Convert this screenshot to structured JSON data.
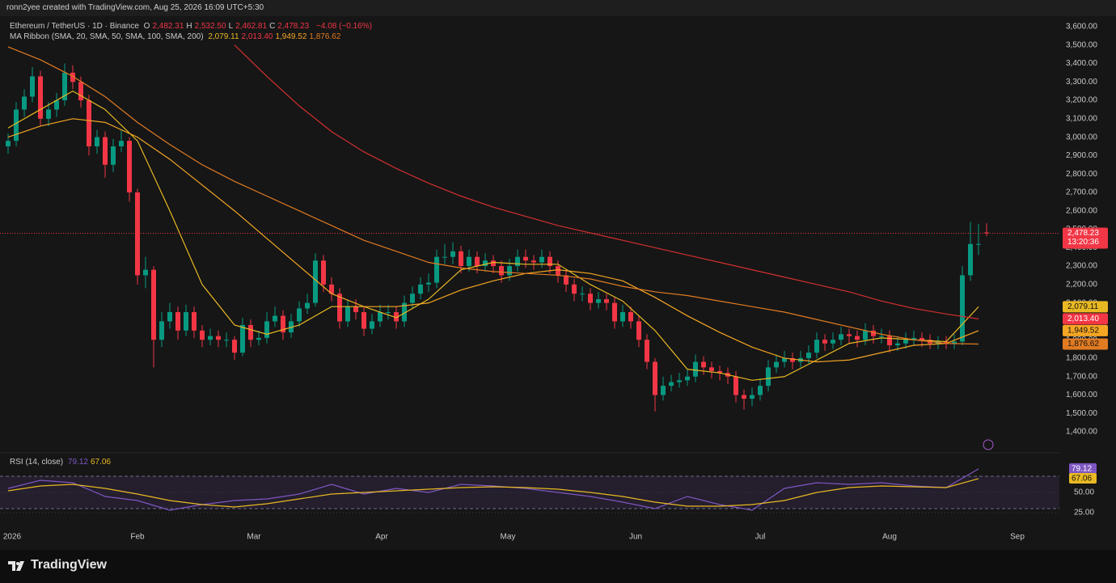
{
  "header": {
    "credit": "ronn2yee created with TradingView.com, Aug 25, 2026 16:09 UTC+5:30",
    "symbol": "Ethereum / TetherUS · 1D · Binance",
    "ohlc": [
      {
        "label": "O",
        "value": "2,482.31"
      },
      {
        "label": "H",
        "value": "2,532.50"
      },
      {
        "label": "L",
        "value": "2,462.81"
      },
      {
        "label": "C",
        "value": "2,478.23"
      }
    ],
    "change": "−4.08 (−0.16%)",
    "indicator": "MA Ribbon (SMA, 20, SMA, 50, SMA, 100, SMA, 200)",
    "rsi_name": "RSI (14, close)",
    "countdown": "13:20:36"
  },
  "footer": {
    "logo": "TradingView"
  },
  "chart_data": [
    {
      "type": "candlestick",
      "up_color": "#089981",
      "down_color": "#f23645",
      "grid": false,
      "ylim": [
        1295,
        3648
      ],
      "yticks": [
        {
          "value": 1400,
          "label": "1,400.00"
        },
        {
          "value": 1500,
          "label": "1,500.00"
        },
        {
          "value": 1600,
          "label": "1,600.00"
        },
        {
          "value": 1700,
          "label": "1,700.00"
        },
        {
          "value": 1800,
          "label": "1,800.00"
        },
        {
          "value": 1900,
          "label": "1,900.00"
        },
        {
          "value": 2000,
          "label": "2,000.00"
        },
        {
          "value": 2100,
          "label": "2,100.00"
        },
        {
          "value": 2200,
          "label": "2,200.00"
        },
        {
          "value": 2300,
          "label": "2,300.00"
        },
        {
          "value": 2400,
          "label": "2,400.00"
        },
        {
          "value": 2500,
          "label": "2,500.00"
        },
        {
          "value": 2600,
          "label": "2,600.00"
        },
        {
          "value": 2700,
          "label": "2,700.00"
        },
        {
          "value": 2800,
          "label": "2,800.00"
        },
        {
          "value": 2900,
          "label": "2,900.00"
        },
        {
          "value": 3000,
          "label": "3,000.00"
        },
        {
          "value": 3100,
          "label": "3,100.00"
        },
        {
          "value": 3200,
          "label": "3,200.00"
        },
        {
          "value": 3300,
          "label": "3,300.00"
        },
        {
          "value": 3400,
          "label": "3,400.00"
        },
        {
          "value": 3500,
          "label": "3,500.00"
        },
        {
          "value": 3600,
          "label": "3,600.00"
        }
      ],
      "xticks": [
        {
          "value": 0.5,
          "label": "2026"
        },
        {
          "value": 16,
          "label": "Feb"
        },
        {
          "value": 30.4,
          "label": "Mar"
        },
        {
          "value": 46.2,
          "label": "Apr"
        },
        {
          "value": 61.8,
          "label": "May"
        },
        {
          "value": 77.6,
          "label": "Jun"
        },
        {
          "value": 93,
          "label": "Jul"
        },
        {
          "value": 109,
          "label": "Aug"
        },
        {
          "value": 124.8,
          "label": "Sep"
        }
      ],
      "open": [
        2950,
        2980,
        3150,
        3220,
        3330,
        3100,
        3150,
        3200,
        3350,
        3300,
        3200,
        2950,
        3000,
        2850,
        2950,
        2980,
        2700,
        2250,
        2280,
        1900,
        2000,
        2050,
        1950,
        2050,
        1950,
        1900,
        1920,
        1900,
        1900,
        1830,
        1980,
        1900,
        1910,
        2000,
        2030,
        1940,
        2000,
        2070,
        2100,
        2330,
        2200,
        2150,
        2000,
        2080,
        2050,
        1960,
        2000,
        2050,
        2050,
        2000,
        2100,
        2150,
        2200,
        2210,
        2350,
        2350,
        2380,
        2300,
        2350,
        2300,
        2330,
        2300,
        2250,
        2300,
        2350,
        2330,
        2320,
        2350,
        2300,
        2250,
        2200,
        2150,
        2150,
        2100,
        2120,
        2100,
        2000,
        2050,
        2000,
        1900,
        1780,
        1600,
        1650,
        1670,
        1680,
        1700,
        1780,
        1750,
        1730,
        1720,
        1700,
        1600,
        1580,
        1600,
        1650,
        1750,
        1780,
        1800,
        1780,
        1800,
        1830,
        1900,
        1880,
        1900,
        1930,
        1920,
        1900,
        1950,
        1920,
        1920,
        1870,
        1880,
        1900,
        1910,
        1900,
        1880,
        1890,
        1880,
        1890,
        2250,
        2420,
        2482.31
      ],
      "high": [
        3020,
        3190,
        3260,
        3380,
        3360,
        3190,
        3240,
        3400,
        3390,
        3330,
        3230,
        3040,
        3030,
        2990,
        3040,
        3000,
        2720,
        2350,
        2300,
        2050,
        2100,
        2080,
        2090,
        2080,
        1980,
        1960,
        1950,
        1940,
        1920,
        2020,
        2010,
        1950,
        2050,
        2080,
        2060,
        2040,
        2110,
        2150,
        2370,
        2360,
        2240,
        2180,
        2120,
        2120,
        2080,
        2040,
        2090,
        2090,
        2080,
        2140,
        2190,
        2240,
        2260,
        2390,
        2420,
        2430,
        2410,
        2390,
        2380,
        2370,
        2360,
        2330,
        2340,
        2390,
        2390,
        2360,
        2390,
        2380,
        2330,
        2280,
        2230,
        2190,
        2180,
        2160,
        2150,
        2130,
        2090,
        2080,
        2030,
        1930,
        1800,
        1700,
        1710,
        1720,
        1740,
        1820,
        1810,
        1780,
        1760,
        1750,
        1730,
        1630,
        1640,
        1690,
        1790,
        1820,
        1840,
        1830,
        1840,
        1870,
        1940,
        1930,
        1940,
        1970,
        1960,
        1950,
        1990,
        1980,
        1960,
        1950,
        1920,
        1940,
        1950,
        1940,
        1930,
        1920,
        1920,
        1930,
        2300,
        2540,
        2530,
        2532.5
      ],
      "low": [
        2910,
        2950,
        3110,
        3190,
        3060,
        3060,
        3110,
        3170,
        3260,
        3160,
        2900,
        2910,
        2780,
        2810,
        2920,
        2650,
        2200,
        2180,
        1750,
        1860,
        1960,
        1900,
        1920,
        1910,
        1860,
        1870,
        1860,
        1860,
        1790,
        1810,
        1860,
        1870,
        1880,
        1970,
        1900,
        1910,
        1970,
        2040,
        2080,
        2160,
        2110,
        1960,
        1970,
        2010,
        1920,
        1930,
        1970,
        2010,
        1960,
        1970,
        2070,
        2120,
        2160,
        2180,
        2310,
        2310,
        2260,
        2270,
        2260,
        2270,
        2260,
        2210,
        2220,
        2270,
        2290,
        2280,
        2290,
        2260,
        2210,
        2160,
        2110,
        2110,
        2060,
        2070,
        2060,
        1960,
        1970,
        1960,
        1860,
        1740,
        1510,
        1570,
        1620,
        1640,
        1650,
        1670,
        1710,
        1690,
        1680,
        1660,
        1560,
        1520,
        1540,
        1570,
        1620,
        1720,
        1750,
        1740,
        1750,
        1770,
        1800,
        1840,
        1850,
        1870,
        1880,
        1860,
        1870,
        1880,
        1880,
        1830,
        1840,
        1850,
        1870,
        1860,
        1850,
        1850,
        1850,
        1850,
        1870,
        2220,
        2360,
        2462.81
      ],
      "close": [
        2980,
        3150,
        3220,
        3330,
        3100,
        3150,
        3200,
        3350,
        3300,
        3200,
        2950,
        3000,
        2850,
        2950,
        2980,
        2700,
        2250,
        2280,
        1900,
        2000,
        2050,
        1950,
        2050,
        1950,
        1900,
        1920,
        1900,
        1900,
        1830,
        1980,
        1900,
        1910,
        2000,
        2030,
        1940,
        2000,
        2070,
        2100,
        2330,
        2200,
        2150,
        2000,
        2080,
        2050,
        1960,
        2000,
        2050,
        2050,
        2000,
        2100,
        2150,
        2200,
        2210,
        2350,
        2350,
        2380,
        2300,
        2350,
        2300,
        2330,
        2300,
        2250,
        2300,
        2350,
        2330,
        2320,
        2350,
        2300,
        2250,
        2200,
        2150,
        2150,
        2100,
        2120,
        2100,
        2000,
        2050,
        2000,
        1900,
        1780,
        1600,
        1650,
        1670,
        1680,
        1700,
        1780,
        1750,
        1730,
        1720,
        1700,
        1600,
        1580,
        1600,
        1650,
        1750,
        1780,
        1800,
        1780,
        1800,
        1830,
        1900,
        1880,
        1900,
        1930,
        1920,
        1900,
        1950,
        1920,
        1920,
        1870,
        1880,
        1900,
        1910,
        1900,
        1880,
        1890,
        1880,
        1890,
        2250,
        2420,
        2420,
        2478.23
      ],
      "ma_series": [
        {
          "color": "#e8b923",
          "values": [
            3050,
            3150,
            3250,
            3150,
            2980,
            2600,
            2200,
            1980,
            1930,
            1980,
            2080,
            2080,
            2020,
            2120,
            2280,
            2320,
            2310,
            2310,
            2200,
            2110,
            1950,
            1740,
            1720,
            1680,
            1700,
            1790,
            1880,
            1910,
            1900,
            1890,
            2079.11
          ]
        },
        {
          "color": "#f5a623",
          "values": [
            3000,
            3060,
            3100,
            3080,
            3000,
            2880,
            2740,
            2600,
            2450,
            2300,
            2150,
            2080,
            2080,
            2100,
            2170,
            2220,
            2260,
            2280,
            2260,
            2220,
            2130,
            2030,
            1940,
            1860,
            1800,
            1780,
            1790,
            1830,
            1870,
            1880,
            1949.52
          ]
        },
        {
          "color": "#e07b22",
          "values": [
            3490,
            3420,
            3330,
            3220,
            3080,
            2960,
            2850,
            2760,
            2680,
            2600,
            2520,
            2440,
            2380,
            2320,
            2290,
            2270,
            2260,
            2250,
            2230,
            2190,
            2160,
            2140,
            2110,
            2080,
            2050,
            2010,
            1970,
            1930,
            1900,
            1880,
            1876.62
          ]
        },
        {
          "color": "#d32f2f",
          "values": [
            null,
            null,
            null,
            null,
            null,
            null,
            null,
            3500,
            3330,
            3170,
            3030,
            2920,
            2830,
            2750,
            2680,
            2620,
            2570,
            2520,
            2480,
            2440,
            2400,
            2360,
            2320,
            2280,
            2240,
            2200,
            2160,
            2110,
            2070,
            2040,
            2013.4
          ]
        }
      ],
      "price_tags": [
        {
          "value": 2478.23,
          "label": "2,478.23",
          "color": "#f23645"
        },
        {
          "value": 2079.11,
          "label": "2,079.11",
          "color": "#e8b923"
        },
        {
          "value": 2013.4,
          "label": "2,013.40",
          "color": "#f23645"
        },
        {
          "value": 1949.52,
          "label": "1,949.52",
          "color": "#f5a623"
        },
        {
          "value": 1876.62,
          "label": "1,876.62",
          "color": "#e07b22"
        }
      ]
    },
    {
      "type": "line",
      "ylim": [
        7,
        97
      ],
      "yticks": [
        {
          "value": 50,
          "label": "50.00"
        },
        {
          "value": 25,
          "label": "25.00"
        }
      ],
      "bands": [
        30,
        70
      ],
      "series": [
        {
          "color": "#7e57c2",
          "values": [
            55,
            65,
            62,
            45,
            40,
            28,
            35,
            40,
            42,
            48,
            60,
            48,
            55,
            50,
            60,
            58,
            55,
            50,
            45,
            38,
            30,
            45,
            35,
            28,
            55,
            62,
            60,
            62,
            58,
            56,
            79.12
          ]
        },
        {
          "color": "#e8b923",
          "values": [
            52,
            58,
            60,
            55,
            48,
            40,
            35,
            32,
            36,
            42,
            48,
            50,
            52,
            54,
            56,
            57,
            56,
            54,
            50,
            45,
            38,
            33,
            33,
            35,
            40,
            50,
            56,
            58,
            57,
            56,
            67.06
          ]
        }
      ],
      "tags": [
        {
          "value": 79.12,
          "label": "79.12",
          "color": "#7e57c2"
        },
        {
          "value": 67.06,
          "label": "67.06",
          "color": "#e8b923"
        }
      ]
    }
  ]
}
